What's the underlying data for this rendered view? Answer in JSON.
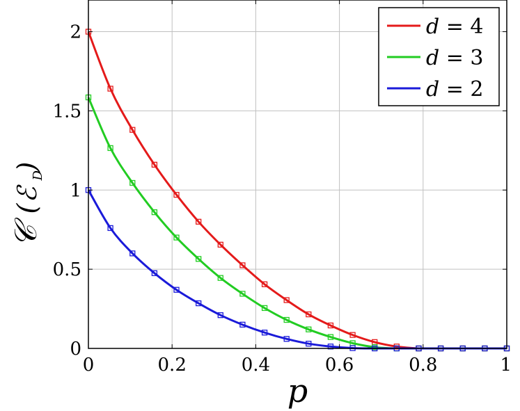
{
  "chart_data": {
    "type": "line",
    "xlabel": "p",
    "ylabel": "C(E_D)",
    "xlim": [
      0,
      1
    ],
    "ylim": [
      0,
      2.2
    ],
    "x_ticks": [
      0,
      0.2,
      0.4,
      0.6,
      0.8,
      1
    ],
    "x_tick_labels": [
      "0",
      "0.2",
      "0.4",
      "0.6",
      "0.8",
      "1"
    ],
    "y_ticks": [
      0,
      0.5,
      1,
      1.5,
      2
    ],
    "y_tick_labels": [
      "0",
      "0.5",
      "1",
      "1.5",
      "2"
    ],
    "grid": true,
    "legend_position": "top-right",
    "marker_x": [
      0,
      0.0526,
      0.1053,
      0.1579,
      0.2105,
      0.2632,
      0.3158,
      0.3684,
      0.4211,
      0.4737,
      0.5263,
      0.5789,
      0.6316,
      0.6842,
      0.7368,
      0.7895,
      0.8421,
      0.8947,
      0.9474,
      1.0
    ],
    "series": [
      {
        "name": "d = 4",
        "d": 4,
        "color": "#e41a1a",
        "marker_y": [
          2.0,
          1.64,
          1.38,
          1.16,
          0.97,
          0.8,
          0.655,
          0.525,
          0.405,
          0.305,
          0.215,
          0.145,
          0.085,
          0.04,
          0.012,
          0,
          0,
          0,
          0,
          0
        ]
      },
      {
        "name": "d = 3",
        "d": 3,
        "color": "#22cc22",
        "marker_y": [
          1.585,
          1.265,
          1.045,
          0.86,
          0.7,
          0.565,
          0.445,
          0.345,
          0.255,
          0.18,
          0.12,
          0.072,
          0.033,
          0.008,
          0,
          0,
          0,
          0,
          0,
          0
        ]
      },
      {
        "name": "d = 2",
        "d": 2,
        "color": "#1a1ad9",
        "marker_y": [
          1.0,
          0.76,
          0.6,
          0.475,
          0.37,
          0.285,
          0.21,
          0.15,
          0.1,
          0.06,
          0.03,
          0.012,
          0.002,
          0,
          0,
          0,
          0,
          0,
          0,
          0
        ]
      }
    ]
  }
}
